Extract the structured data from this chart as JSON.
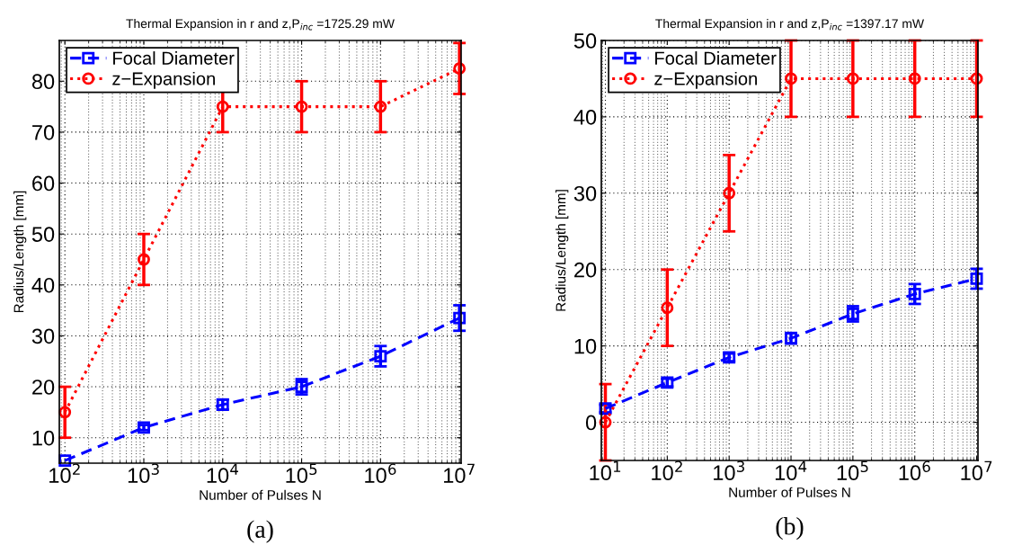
{
  "chart_data": [
    {
      "type": "line",
      "title": "Thermal Expansion in r and z,P$_{inc}$ =1725.29 mW",
      "xlabel": "Number of Pulses N",
      "ylabel": "Radius/Length [mm]",
      "log": "x",
      "x": [
        100,
        1000,
        10000,
        100000,
        1000000,
        10000000
      ],
      "series": [
        {
          "name": "Focal Diameter",
          "color": "#0000ff",
          "marker": "square",
          "line_style": "dashed",
          "values": [
            5.5,
            12,
            16.5,
            20,
            26,
            33.5
          ],
          "errors": [
            null,
            0.5,
            1,
            1.5,
            2,
            2.5
          ]
        },
        {
          "name": "z−Expansion",
          "color": "#ff0000",
          "marker": "circle",
          "line_style": "dotted",
          "values": [
            15,
            45,
            75,
            75,
            75,
            82.5
          ],
          "errors": [
            5,
            5,
            5,
            5,
            5,
            5
          ]
        }
      ],
      "xlim": [
        85,
        10500000
      ],
      "xticks": [
        {
          "value": 100,
          "label": "10$^{2}$"
        },
        {
          "value": 1000,
          "label": "10$^{3}$"
        },
        {
          "value": 10000,
          "label": "10$^{4}$"
        },
        {
          "value": 100000,
          "label": "10$^{5}$"
        },
        {
          "value": 1000000,
          "label": "10$^{6}$"
        },
        {
          "value": 10000000,
          "label": "10$^{7}$"
        }
      ],
      "ylim": [
        5,
        88
      ],
      "yticks": [
        10,
        20,
        30,
        40,
        50,
        60,
        70,
        80
      ],
      "grid": true,
      "legend": "top left",
      "annotations": [
        "(a)"
      ]
    },
    {
      "type": "line",
      "title": "Thermal Expansion in r and z,P$_{inc}$ =1397.17 mW",
      "xlabel": "Number of Pulses N",
      "ylabel": "Radius/Length [mm]",
      "log": "x",
      "x": [
        10,
        100,
        1000,
        10000,
        100000,
        1000000,
        10000000
      ],
      "series": [
        {
          "name": "Focal Diameter",
          "color": "#0000ff",
          "marker": "square",
          "line_style": "dashed",
          "values": [
            1.8,
            5.2,
            8.5,
            11,
            14.2,
            16.8,
            18.8
          ],
          "errors": [
            0.5,
            0.5,
            0.5,
            0.7,
            1,
            1.3,
            1.3
          ]
        },
        {
          "name": "z−Expansion",
          "color": "#ff0000",
          "marker": "circle",
          "line_style": "dotted",
          "values": [
            0,
            15,
            30,
            45,
            45,
            45,
            45
          ],
          "errors": [
            5,
            5,
            5,
            5,
            5,
            5,
            5
          ]
        }
      ],
      "xlim": [
        8.6,
        10500000
      ],
      "xticks": [
        {
          "value": 10,
          "label": "10$^{1}$"
        },
        {
          "value": 100,
          "label": "10$^{2}$"
        },
        {
          "value": 1000,
          "label": "10$^{3}$"
        },
        {
          "value": 10000,
          "label": "10$^{4}$"
        },
        {
          "value": 100000,
          "label": "10$^{5}$"
        },
        {
          "value": 1000000,
          "label": "10$^{6}$"
        },
        {
          "value": 10000000,
          "label": "10$^{7}$"
        }
      ],
      "ylim": [
        -5,
        50
      ],
      "yticks": [
        0,
        10,
        20,
        30,
        40,
        50
      ],
      "grid": true,
      "legend": "top left",
      "annotations": [
        "(b)"
      ]
    }
  ]
}
